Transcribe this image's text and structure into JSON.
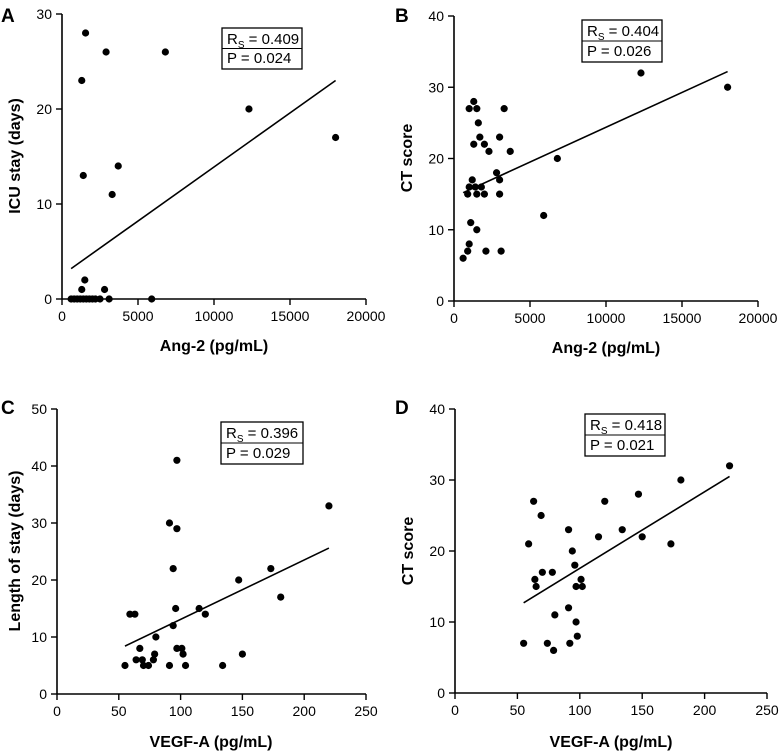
{
  "chart_data": [
    {
      "type": "scatter",
      "panel": "A",
      "title": "",
      "xlabel": "Ang-2 (pg/mL)",
      "ylabel": "ICU stay (days)",
      "xlim": [
        0,
        20000
      ],
      "ylim": [
        0,
        30
      ],
      "xticks": [
        0,
        5000,
        10000,
        15000,
        20000
      ],
      "yticks": [
        0,
        10,
        20,
        30
      ],
      "stats": {
        "rs_label": "R",
        "rs_sub": "S",
        "rs_value": " = 0.409",
        "p": "P = 0.024"
      },
      "trendline": {
        "x": [
          600,
          18000
        ],
        "y": [
          3.2,
          23.0
        ]
      },
      "points": [
        [
          1550,
          28
        ],
        [
          2900,
          26
        ],
        [
          6800,
          26
        ],
        [
          1300,
          23
        ],
        [
          12300,
          20
        ],
        [
          18000,
          17
        ],
        [
          3700,
          14
        ],
        [
          1400,
          13
        ],
        [
          3300,
          11
        ],
        [
          1500,
          2
        ],
        [
          1300,
          1
        ],
        [
          2800,
          1
        ],
        [
          600,
          0
        ],
        [
          800,
          0
        ],
        [
          1000,
          0
        ],
        [
          1200,
          0
        ],
        [
          1400,
          0
        ],
        [
          1600,
          0
        ],
        [
          1800,
          0
        ],
        [
          2000,
          0
        ],
        [
          2200,
          0
        ],
        [
          2500,
          0
        ],
        [
          3100,
          0
        ],
        [
          5900,
          0
        ]
      ]
    },
    {
      "type": "scatter",
      "panel": "B",
      "title": "",
      "xlabel": "Ang-2 (pg/mL)",
      "ylabel": "CT score",
      "xlim": [
        0,
        20000
      ],
      "ylim": [
        0,
        40
      ],
      "xticks": [
        0,
        5000,
        10000,
        15000,
        20000
      ],
      "yticks": [
        0,
        10,
        20,
        30,
        40
      ],
      "stats": {
        "rs_label": "R",
        "rs_sub": "S",
        "rs_value": " = 0.404",
        "p": "P = 0.026"
      },
      "trendline": {
        "x": [
          600,
          18000
        ],
        "y": [
          15.2,
          32.2
        ]
      },
      "points": [
        [
          12300,
          32
        ],
        [
          18000,
          30
        ],
        [
          1300,
          28
        ],
        [
          1000,
          27
        ],
        [
          1500,
          27
        ],
        [
          3300,
          27
        ],
        [
          1600,
          25
        ],
        [
          1300,
          22
        ],
        [
          2000,
          22
        ],
        [
          3000,
          23
        ],
        [
          1700,
          23
        ],
        [
          2300,
          21
        ],
        [
          3700,
          21
        ],
        [
          6800,
          20
        ],
        [
          2800,
          18
        ],
        [
          3000,
          17
        ],
        [
          1200,
          17
        ],
        [
          1400,
          16
        ],
        [
          1000,
          16
        ],
        [
          1800,
          16
        ],
        [
          900,
          15
        ],
        [
          1500,
          15
        ],
        [
          2000,
          15
        ],
        [
          3000,
          15
        ],
        [
          5900,
          12
        ],
        [
          1100,
          11
        ],
        [
          1500,
          10
        ],
        [
          1000,
          8
        ],
        [
          900,
          7
        ],
        [
          2100,
          7
        ],
        [
          3100,
          7
        ],
        [
          600,
          6
        ]
      ]
    },
    {
      "type": "scatter",
      "panel": "C",
      "title": "",
      "xlabel": "VEGF-A (pg/mL)",
      "ylabel": "Length of stay (days)",
      "xlim": [
        0,
        250
      ],
      "ylim": [
        0,
        50
      ],
      "xticks": [
        0,
        50,
        100,
        150,
        200,
        250
      ],
      "yticks": [
        0,
        10,
        20,
        30,
        40,
        50
      ],
      "stats": {
        "rs_label": "R",
        "rs_sub": "S",
        "rs_value": " = 0.396",
        "p": "P = 0.029"
      },
      "trendline": {
        "x": [
          55,
          220
        ],
        "y": [
          8.4,
          25.6
        ]
      },
      "points": [
        [
          97,
          41
        ],
        [
          220,
          33
        ],
        [
          91,
          30
        ],
        [
          97,
          29
        ],
        [
          94,
          22
        ],
        [
          173,
          22
        ],
        [
          147,
          20
        ],
        [
          181,
          17
        ],
        [
          96,
          15
        ],
        [
          115,
          15
        ],
        [
          120,
          14
        ],
        [
          59,
          14
        ],
        [
          63,
          14
        ],
        [
          94,
          12
        ],
        [
          80,
          10
        ],
        [
          97,
          8
        ],
        [
          67,
          8
        ],
        [
          102,
          7
        ],
        [
          79,
          7
        ],
        [
          150,
          7
        ],
        [
          101,
          8
        ],
        [
          64,
          6
        ],
        [
          69,
          6
        ],
        [
          78,
          6
        ],
        [
          55,
          5
        ],
        [
          70,
          5
        ],
        [
          74,
          5
        ],
        [
          91,
          5
        ],
        [
          104,
          5
        ],
        [
          134,
          5
        ]
      ]
    },
    {
      "type": "scatter",
      "panel": "D",
      "title": "",
      "xlabel": "VEGF-A (pg/mL)",
      "ylabel": "CT score",
      "xlim": [
        0,
        250
      ],
      "ylim": [
        0,
        40
      ],
      "xticks": [
        0,
        50,
        100,
        150,
        200,
        250
      ],
      "yticks": [
        0,
        10,
        20,
        30,
        40
      ],
      "stats": {
        "rs_label": "R",
        "rs_sub": "S",
        "rs_value": " = 0.418",
        "p": "P = 0.021"
      },
      "trendline": {
        "x": [
          55,
          220
        ],
        "y": [
          12.7,
          30.5
        ]
      },
      "points": [
        [
          220,
          32
        ],
        [
          181,
          30
        ],
        [
          147,
          28
        ],
        [
          63,
          27
        ],
        [
          120,
          27
        ],
        [
          69,
          25
        ],
        [
          91,
          23
        ],
        [
          134,
          23
        ],
        [
          115,
          22
        ],
        [
          150,
          22
        ],
        [
          173,
          21
        ],
        [
          59,
          21
        ],
        [
          94,
          20
        ],
        [
          96,
          18
        ],
        [
          70,
          17
        ],
        [
          78,
          17
        ],
        [
          101,
          16
        ],
        [
          64,
          16
        ],
        [
          65,
          15
        ],
        [
          97,
          15
        ],
        [
          102,
          15
        ],
        [
          91,
          12
        ],
        [
          80,
          11
        ],
        [
          97,
          10
        ],
        [
          98,
          8
        ],
        [
          55,
          7
        ],
        [
          74,
          7
        ],
        [
          92,
          7
        ],
        [
          79,
          6
        ]
      ]
    }
  ]
}
